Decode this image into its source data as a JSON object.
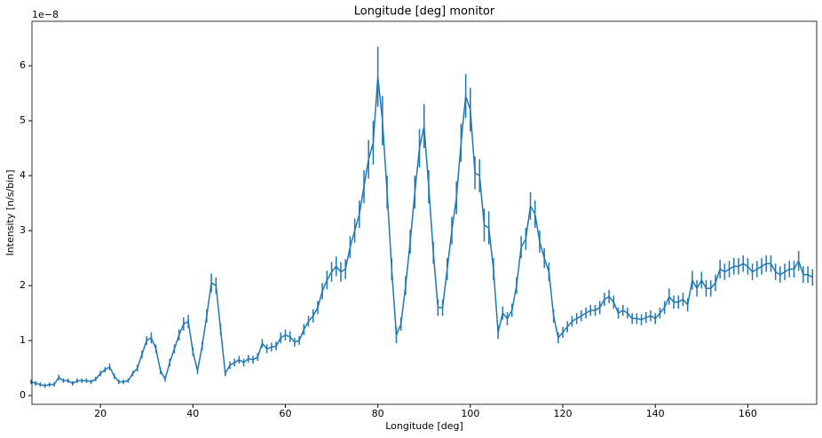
{
  "chart_data": {
    "type": "errorbar-line",
    "title": "Longitude [deg] monitor",
    "x_label": "Longitude [deg]",
    "y_label": "Intensity [n/s/bin]",
    "y_offset_text": "1e−8",
    "color": "#1f77b4",
    "x": [
      5,
      6,
      7,
      8,
      9,
      10,
      11,
      12,
      13,
      14,
      15,
      16,
      17,
      18,
      19,
      20,
      21,
      22,
      23,
      24,
      25,
      26,
      27,
      28,
      29,
      30,
      31,
      32,
      33,
      34,
      35,
      36,
      37,
      38,
      39,
      40,
      41,
      42,
      43,
      44,
      45,
      46,
      47,
      48,
      49,
      50,
      51,
      52,
      53,
      54,
      55,
      56,
      57,
      58,
      59,
      60,
      61,
      62,
      63,
      64,
      65,
      66,
      67,
      68,
      69,
      70,
      71,
      72,
      73,
      74,
      75,
      76,
      77,
      78,
      79,
      80,
      81,
      82,
      83,
      84,
      85,
      86,
      87,
      88,
      89,
      90,
      91,
      92,
      93,
      94,
      95,
      96,
      97,
      98,
      99,
      100,
      101,
      102,
      103,
      104,
      105,
      106,
      107,
      108,
      109,
      110,
      111,
      112,
      113,
      114,
      115,
      116,
      117,
      118,
      119,
      120,
      121,
      122,
      123,
      124,
      125,
      126,
      127,
      128,
      129,
      130,
      131,
      132,
      133,
      134,
      135,
      136,
      137,
      138,
      139,
      140,
      141,
      142,
      143,
      144,
      145,
      146,
      147,
      148,
      149,
      150,
      151,
      152,
      153,
      154,
      155,
      156,
      157,
      158,
      159,
      160,
      161,
      162,
      163,
      164,
      165,
      166,
      167,
      168,
      169,
      170,
      171,
      172,
      173,
      174
    ],
    "values": [
      0.25,
      0.22,
      0.2,
      0.18,
      0.2,
      0.2,
      0.33,
      0.27,
      0.27,
      0.22,
      0.27,
      0.27,
      0.27,
      0.25,
      0.3,
      0.4,
      0.47,
      0.52,
      0.35,
      0.25,
      0.25,
      0.27,
      0.4,
      0.5,
      0.75,
      1.0,
      1.05,
      0.85,
      0.45,
      0.3,
      0.6,
      0.85,
      1.1,
      1.3,
      1.35,
      0.8,
      0.45,
      0.9,
      1.45,
      2.05,
      2.0,
      1.2,
      0.4,
      0.55,
      0.6,
      0.65,
      0.6,
      0.67,
      0.65,
      0.7,
      0.95,
      0.85,
      0.88,
      0.9,
      1.05,
      1.1,
      1.07,
      0.97,
      1.0,
      1.2,
      1.35,
      1.45,
      1.6,
      1.9,
      2.1,
      2.25,
      2.35,
      2.25,
      2.3,
      2.7,
      3.0,
      3.3,
      3.8,
      4.3,
      4.6,
      5.8,
      5.0,
      3.7,
      2.3,
      1.1,
      1.3,
      2.0,
      2.8,
      3.7,
      4.5,
      4.9,
      3.8,
      2.6,
      1.6,
      1.6,
      2.3,
      3.0,
      3.6,
      4.6,
      5.45,
      5.2,
      4.05,
      4.0,
      3.1,
      3.05,
      2.3,
      1.15,
      1.5,
      1.4,
      1.55,
      2.0,
      2.7,
      2.85,
      3.45,
      3.3,
      2.8,
      2.5,
      2.25,
      1.45,
      1.05,
      1.15,
      1.25,
      1.35,
      1.4,
      1.45,
      1.5,
      1.55,
      1.55,
      1.6,
      1.75,
      1.8,
      1.7,
      1.5,
      1.55,
      1.5,
      1.4,
      1.4,
      1.38,
      1.42,
      1.45,
      1.4,
      1.5,
      1.6,
      1.8,
      1.7,
      1.7,
      1.75,
      1.65,
      2.1,
      1.95,
      2.1,
      1.95,
      1.95,
      2.05,
      2.3,
      2.25,
      2.3,
      2.35,
      2.35,
      2.4,
      2.35,
      2.25,
      2.3,
      2.35,
      2.4,
      2.4,
      2.25,
      2.2,
      2.25,
      2.3,
      2.3,
      2.45,
      2.2,
      2.2,
      2.15
    ],
    "errors": [
      0.04,
      0.04,
      0.04,
      0.04,
      0.04,
      0.04,
      0.05,
      0.04,
      0.04,
      0.04,
      0.04,
      0.04,
      0.04,
      0.04,
      0.04,
      0.05,
      0.05,
      0.06,
      0.05,
      0.04,
      0.04,
      0.04,
      0.05,
      0.06,
      0.07,
      0.08,
      0.1,
      0.08,
      0.06,
      0.05,
      0.07,
      0.08,
      0.1,
      0.12,
      0.12,
      0.08,
      0.06,
      0.08,
      0.12,
      0.17,
      0.15,
      0.1,
      0.05,
      0.07,
      0.07,
      0.07,
      0.07,
      0.07,
      0.07,
      0.07,
      0.08,
      0.08,
      0.08,
      0.08,
      0.1,
      0.1,
      0.1,
      0.08,
      0.08,
      0.1,
      0.1,
      0.12,
      0.12,
      0.15,
      0.17,
      0.18,
      0.18,
      0.18,
      0.18,
      0.2,
      0.22,
      0.25,
      0.3,
      0.35,
      0.4,
      0.55,
      0.45,
      0.3,
      0.2,
      0.15,
      0.12,
      0.17,
      0.22,
      0.3,
      0.35,
      0.4,
      0.3,
      0.2,
      0.15,
      0.15,
      0.2,
      0.25,
      0.3,
      0.35,
      0.4,
      0.4,
      0.3,
      0.3,
      0.3,
      0.3,
      0.2,
      0.12,
      0.12,
      0.12,
      0.12,
      0.15,
      0.2,
      0.2,
      0.25,
      0.25,
      0.2,
      0.18,
      0.17,
      0.12,
      0.1,
      0.1,
      0.1,
      0.1,
      0.1,
      0.1,
      0.1,
      0.1,
      0.1,
      0.12,
      0.12,
      0.12,
      0.12,
      0.1,
      0.1,
      0.1,
      0.1,
      0.1,
      0.1,
      0.1,
      0.1,
      0.1,
      0.1,
      0.12,
      0.15,
      0.12,
      0.12,
      0.12,
      0.12,
      0.17,
      0.15,
      0.15,
      0.15,
      0.15,
      0.15,
      0.17,
      0.15,
      0.15,
      0.15,
      0.15,
      0.15,
      0.15,
      0.15,
      0.15,
      0.15,
      0.15,
      0.15,
      0.15,
      0.15,
      0.15,
      0.15,
      0.15,
      0.18,
      0.15,
      0.15,
      0.15
    ],
    "xlim": [
      5.2,
      174.9
    ],
    "ylim": [
      -0.16,
      6.81
    ],
    "xticks": [
      20,
      40,
      60,
      80,
      100,
      120,
      140,
      160
    ],
    "yticks": [
      0,
      1,
      2,
      3,
      4,
      5,
      6
    ]
  }
}
